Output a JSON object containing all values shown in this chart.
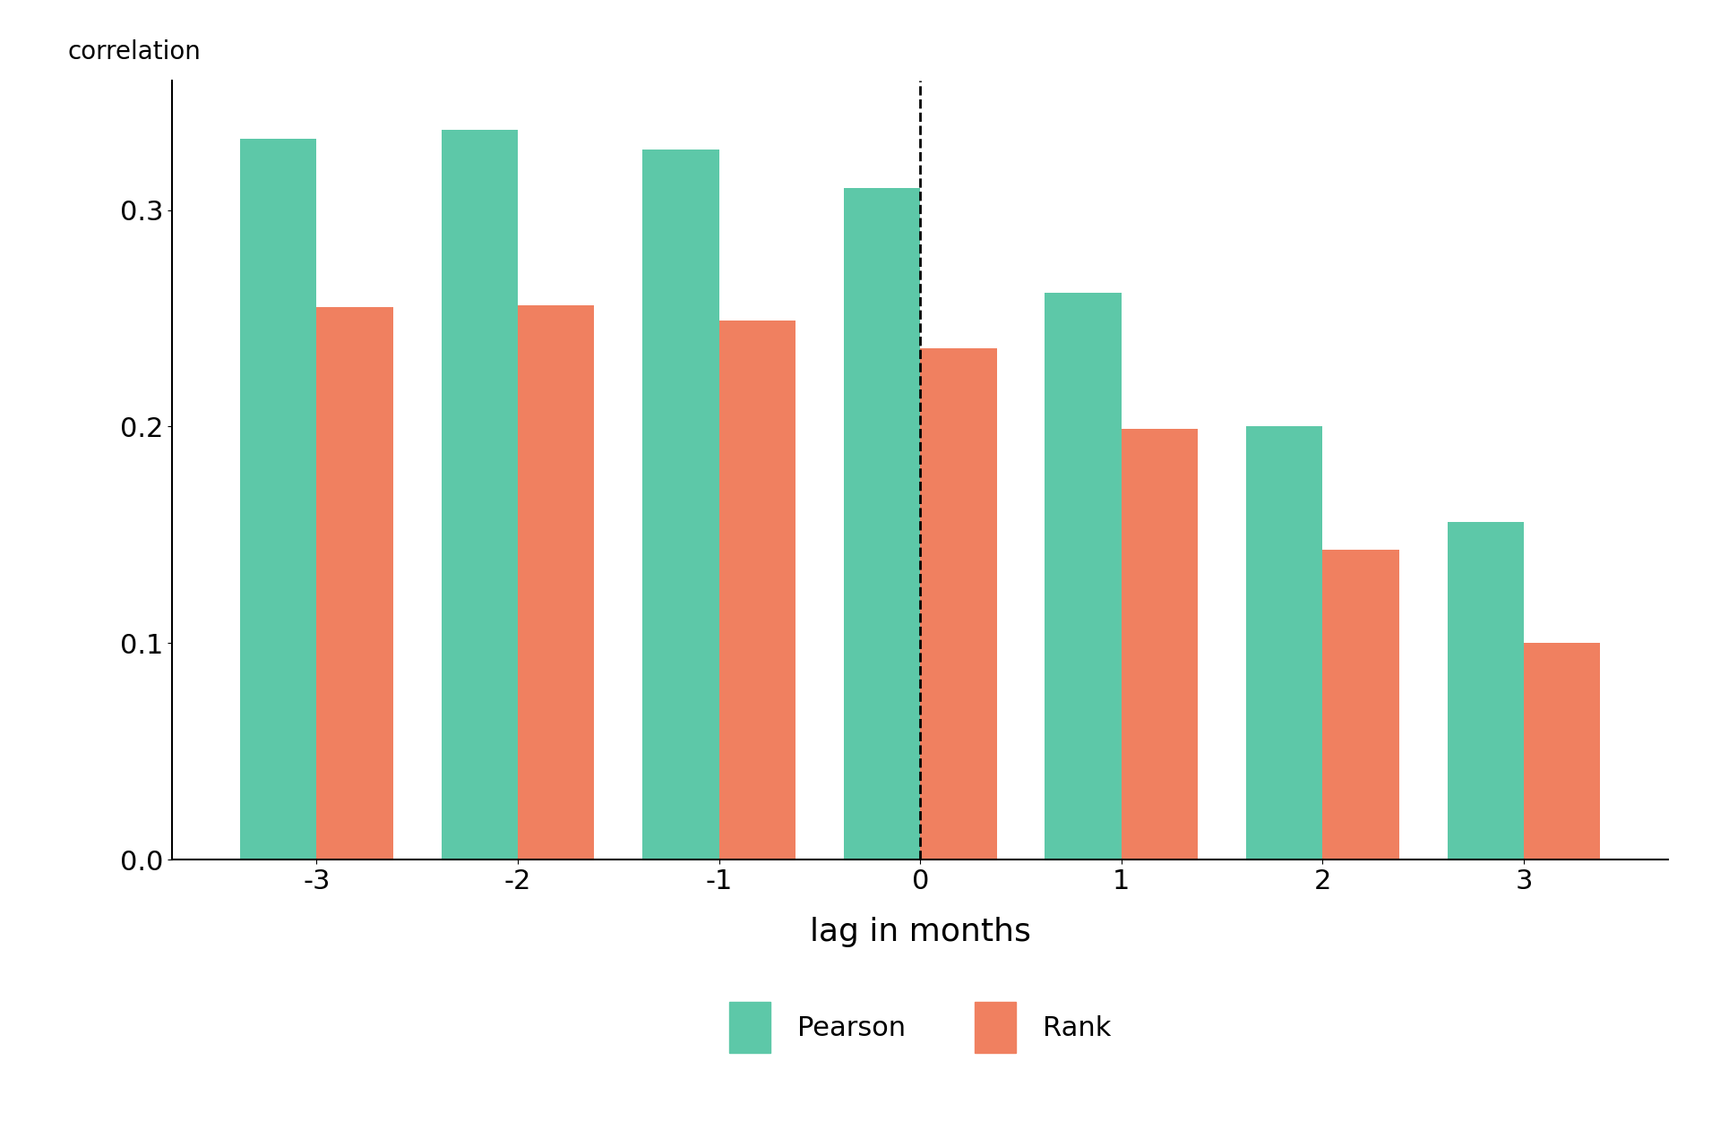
{
  "lags": [
    -3,
    -2,
    -1,
    0,
    1,
    2,
    3
  ],
  "pearson": [
    0.333,
    0.337,
    0.328,
    0.31,
    0.262,
    0.2,
    0.156
  ],
  "rank": [
    0.255,
    0.256,
    0.249,
    0.236,
    0.199,
    0.143,
    0.1
  ],
  "pearson_color": "#5DC8A8",
  "rank_color": "#F08060",
  "xlabel": "lag in months",
  "ylabel": "correlation",
  "ylim": [
    0,
    0.36
  ],
  "yticks": [
    0.0,
    0.1,
    0.2,
    0.3
  ],
  "bar_width": 0.38,
  "background_color": "#ffffff",
  "legend_labels": [
    "Pearson",
    "Rank"
  ],
  "axis_fontsize": 26,
  "tick_fontsize": 22,
  "legend_fontsize": 22,
  "ylabel_fontsize": 20
}
